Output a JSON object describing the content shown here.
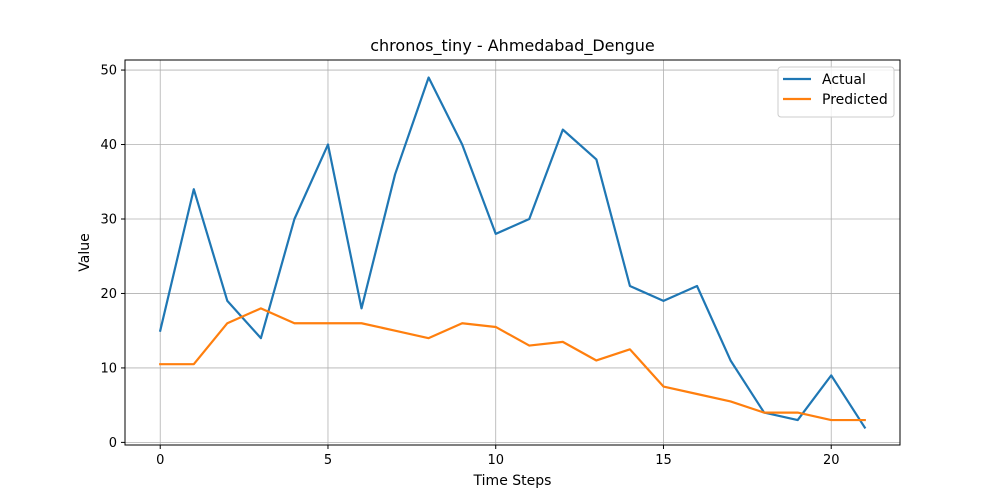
{
  "chart_data": {
    "type": "line",
    "title": "chronos_tiny - Ahmedabad_Dengue",
    "xlabel": "Time Steps",
    "ylabel": "Value",
    "x": [
      0,
      1,
      2,
      3,
      4,
      5,
      6,
      7,
      8,
      9,
      10,
      11,
      12,
      13,
      14,
      15,
      16,
      17,
      18,
      19,
      20,
      21
    ],
    "xlim": [
      -1.05,
      22.05
    ],
    "ylim": [
      -0.35,
      51.35
    ],
    "xticks": [
      0,
      5,
      10,
      15,
      20
    ],
    "yticks": [
      0,
      10,
      20,
      30,
      40,
      50
    ],
    "grid": true,
    "legend_position": "top-right",
    "series": [
      {
        "name": "Actual",
        "color": "#1f77b4",
        "values": [
          15,
          34,
          19,
          14,
          30,
          40,
          18,
          36,
          49,
          40,
          28,
          30,
          42,
          38,
          21,
          19,
          21,
          11,
          4,
          3,
          9,
          2
        ]
      },
      {
        "name": "Predicted",
        "color": "#ff7f0e",
        "values": [
          10.5,
          10.5,
          16,
          18,
          16,
          16,
          16,
          15,
          14,
          16,
          15.5,
          13,
          13.5,
          11,
          12.5,
          7.5,
          6.5,
          5.5,
          4,
          4,
          3,
          3
        ]
      }
    ]
  }
}
